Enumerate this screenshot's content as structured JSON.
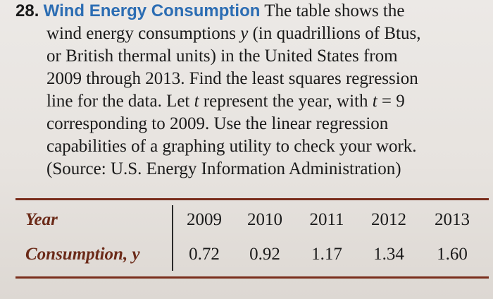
{
  "problem": {
    "number": "28.",
    "title": "Wind Energy Consumption",
    "line1_rest": "The table shows the",
    "line2": "wind energy consumptions",
    "line2_var": "y",
    "line2_rest": "(in quadrillions of Btus,",
    "line3": "or British thermal units) in the United States from",
    "line4": "2009 through 2013. Find the least squares regression",
    "line5_a": "line for the data. Let",
    "line5_var": "t",
    "line5_b": "represent the year, with",
    "line5_var2": "t",
    "line5_c": "= 9",
    "line6": "corresponding to 2009. Use the linear regression",
    "line7": "capabilities of a graphing utility to check your work.",
    "line8": "(Source: U.S. Energy Information Administration)"
  },
  "table": {
    "row1_label": "Year",
    "row2_label": "Consumption, y",
    "years": [
      "2009",
      "2010",
      "2011",
      "2012",
      "2013"
    ],
    "consumption": [
      "0.72",
      "0.92",
      "1.17",
      "1.34",
      "1.60"
    ]
  }
}
